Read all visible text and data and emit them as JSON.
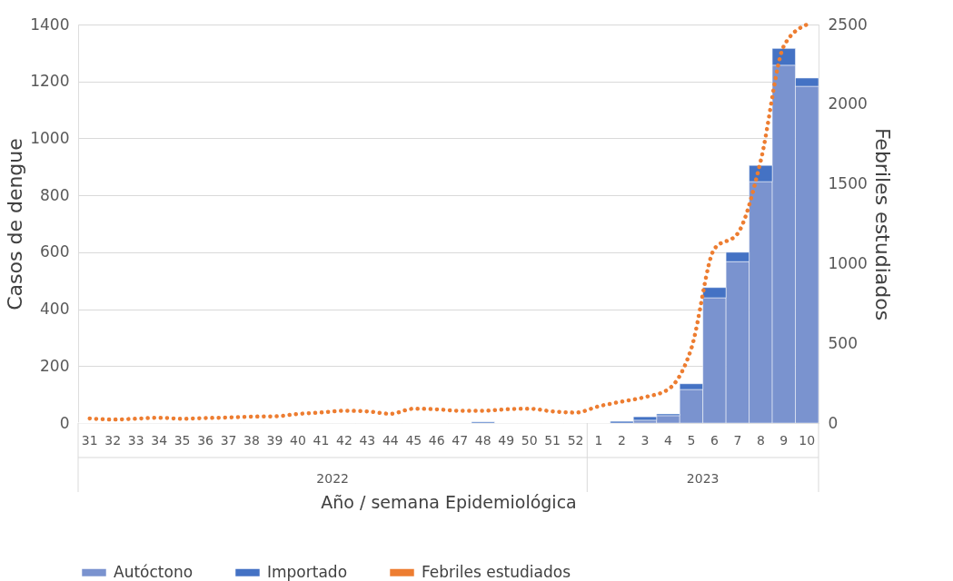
{
  "chart_data": {
    "type": "bar",
    "stacked": true,
    "categories": [
      "31",
      "32",
      "33",
      "34",
      "35",
      "36",
      "37",
      "38",
      "39",
      "40",
      "41",
      "42",
      "43",
      "44",
      "45",
      "46",
      "47",
      "48",
      "49",
      "50",
      "51",
      "52",
      "1",
      "2",
      "3",
      "4",
      "5",
      "6",
      "7",
      "8",
      "9",
      "10"
    ],
    "xlabel": "Año / semana Epidemiológica",
    "ylabel": "Casos de dengue",
    "y2label": "Febriles estudiados",
    "annotations": [
      "2022",
      "2023"
    ],
    "series": [
      {
        "name": "Autóctono",
        "color": "#7a93cf",
        "values": [
          0,
          0,
          0,
          0,
          0,
          0,
          0,
          0,
          0,
          0,
          0,
          0,
          0,
          0,
          0,
          0,
          0,
          0,
          0,
          0,
          0,
          0,
          0,
          0,
          10,
          26,
          118,
          440,
          567,
          848,
          1257,
          1183
        ]
      },
      {
        "name": "Importado",
        "color": "#4472c4",
        "values": [
          0,
          0,
          0,
          0,
          0,
          0,
          0,
          0,
          0,
          0,
          0,
          0,
          0,
          0,
          0,
          0,
          0,
          4,
          0,
          0,
          0,
          0,
          0,
          6,
          12,
          6,
          20,
          36,
          33,
          57,
          59,
          29
        ]
      },
      {
        "name": "Febriles estudiados",
        "type": "line",
        "axis": "y2",
        "color": "#ed7d31",
        "line_style": "dotted",
        "values": [
          29,
          22,
          27,
          33,
          27,
          31,
          35,
          40,
          42,
          57,
          66,
          77,
          73,
          58,
          90,
          86,
          77,
          77,
          86,
          90,
          73,
          66,
          105,
          135,
          163,
          211,
          467,
          1093,
          1188,
          1644,
          2365,
          2500
        ]
      }
    ],
    "ylim": [
      0,
      1400
    ],
    "yticks": [
      0,
      200,
      400,
      600,
      800,
      1000,
      1200,
      1400
    ],
    "y2lim": [
      0,
      2500
    ],
    "y2ticks": [
      0,
      500,
      1000,
      1500,
      2000,
      2500
    ],
    "grid": "y",
    "legend": "bottom",
    "marker": "none"
  }
}
